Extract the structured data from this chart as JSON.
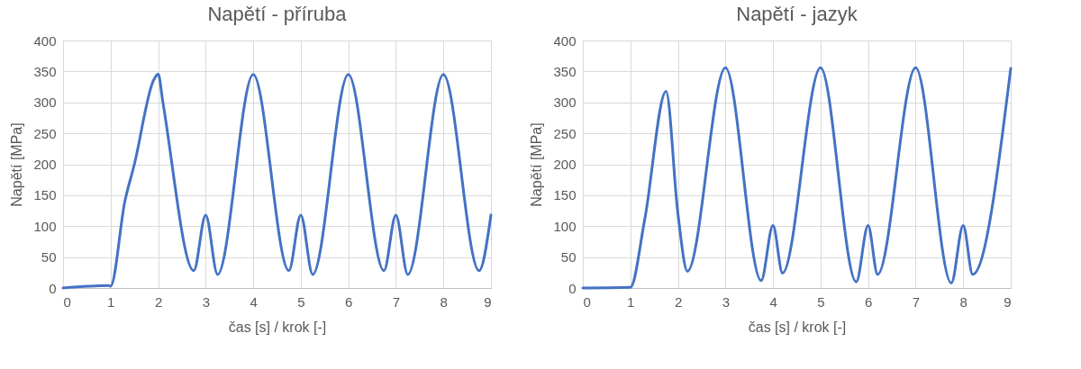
{
  "chart_data": [
    {
      "type": "line",
      "title": "Napětí - příruba",
      "xlabel": "čas [s] / krok [-]",
      "ylabel": "Napětí [MPa]",
      "xlim": [
        0,
        9
      ],
      "xticks": [
        0,
        1,
        2,
        3,
        4,
        5,
        6,
        7,
        8,
        9
      ],
      "ylim": [
        0,
        400
      ],
      "yticks": [
        0,
        50,
        100,
        150,
        200,
        250,
        300,
        350,
        400
      ],
      "grid": true,
      "line_style": "solid",
      "marker": "none",
      "series": [
        {
          "color": "#4472c4",
          "x": [
            0,
            0.95,
            1,
            1.3,
            1.5,
            1.9,
            2,
            2.1,
            2.75,
            3,
            3.25,
            4,
            4.75,
            5,
            5.25,
            6,
            6.75,
            7,
            7.25,
            8,
            8.75,
            9
          ],
          "values": [
            0,
            4,
            3,
            140,
            200,
            335,
            346,
            300,
            28,
            118,
            22,
            345,
            28,
            118,
            22,
            345,
            28,
            118,
            22,
            345,
            28,
            118
          ]
        }
      ]
    },
    {
      "type": "line",
      "title": "Napětí - jazyk",
      "xlabel": "čas [s] / krok [-]",
      "ylabel": "Napětí [MPa]",
      "xlim": [
        0,
        9
      ],
      "xticks": [
        0,
        1,
        2,
        3,
        4,
        5,
        6,
        7,
        8,
        9
      ],
      "ylim": [
        0,
        400
      ],
      "yticks": [
        0,
        50,
        100,
        150,
        200,
        250,
        300,
        350,
        400
      ],
      "grid": true,
      "line_style": "solid",
      "marker": "none",
      "series": [
        {
          "color": "#4472c4",
          "x": [
            0,
            1,
            1.3,
            1.75,
            2,
            2.2,
            3,
            3.75,
            4,
            4.2,
            5,
            5.75,
            6,
            6.2,
            7,
            7.75,
            8,
            8.2,
            9
          ],
          "values": [
            0,
            1,
            110,
            318,
            120,
            27,
            356,
            12,
            101,
            24,
            356,
            10,
            101,
            22,
            356,
            8,
            101,
            22,
            355
          ]
        }
      ]
    }
  ]
}
